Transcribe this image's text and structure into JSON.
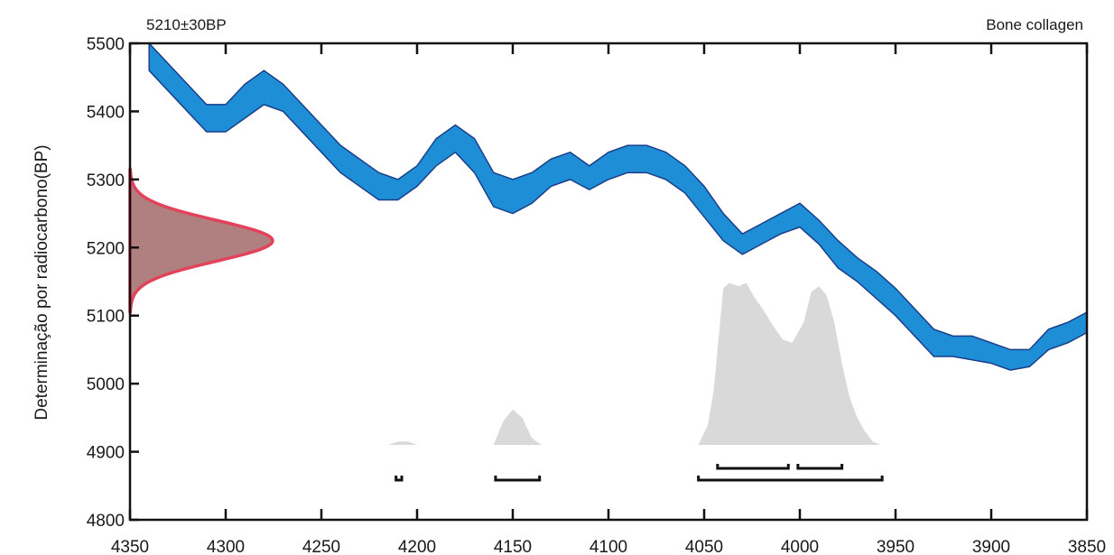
{
  "chart_data": {
    "type": "area",
    "annotation_left": "5210±30BP",
    "annotation_right": "Bone collagen",
    "ylabel": "Determinação por radiocarbono(BP)",
    "xlabel": "",
    "xlim": [
      4350,
      3850
    ],
    "ylim": [
      4800,
      5500
    ],
    "x_ticks": [
      4350,
      4300,
      4250,
      4200,
      4150,
      4100,
      4050,
      4000,
      3950,
      3900,
      3850
    ],
    "y_ticks": [
      4800,
      4900,
      5000,
      5100,
      5200,
      5300,
      5400,
      5500
    ],
    "colors": {
      "calibration_curve": "#1e8fd6",
      "calibration_outline": "#1a3f8a",
      "radiocarbon_fill": "#b08080",
      "radiocarbon_edge": "#e2435a",
      "calibrated_distribution": "#d9d9d9",
      "range_bars": "#111111"
    },
    "calibration_curve": {
      "x": [
        4340,
        4330,
        4320,
        4310,
        4300,
        4290,
        4280,
        4270,
        4260,
        4250,
        4240,
        4230,
        4220,
        4210,
        4200,
        4190,
        4180,
        4170,
        4160,
        4150,
        4140,
        4130,
        4120,
        4110,
        4100,
        4090,
        4080,
        4070,
        4060,
        4050,
        4040,
        4030,
        4020,
        4010,
        4000,
        3990,
        3980,
        3970,
        3960,
        3950,
        3940,
        3930,
        3920,
        3910,
        3900,
        3890,
        3880,
        3870,
        3860,
        3850
      ],
      "y_upper": [
        5500,
        5470,
        5440,
        5410,
        5410,
        5440,
        5460,
        5440,
        5410,
        5380,
        5350,
        5330,
        5310,
        5300,
        5320,
        5360,
        5380,
        5360,
        5310,
        5300,
        5310,
        5330,
        5340,
        5320,
        5340,
        5350,
        5350,
        5340,
        5320,
        5290,
        5250,
        5220,
        5235,
        5250,
        5265,
        5240,
        5210,
        5185,
        5165,
        5140,
        5110,
        5080,
        5070,
        5070,
        5060,
        5050,
        5050,
        5080,
        5090,
        5105
      ],
      "y_lower": [
        5460,
        5430,
        5400,
        5370,
        5370,
        5390,
        5410,
        5400,
        5370,
        5340,
        5310,
        5290,
        5270,
        5270,
        5290,
        5320,
        5340,
        5310,
        5260,
        5250,
        5265,
        5290,
        5300,
        5285,
        5300,
        5310,
        5310,
        5300,
        5280,
        5245,
        5210,
        5190,
        5205,
        5220,
        5230,
        5205,
        5170,
        5150,
        5125,
        5100,
        5070,
        5040,
        5040,
        5035,
        5030,
        5020,
        5025,
        5050,
        5060,
        5075
      ]
    },
    "radiocarbon_date": {
      "mean": 5210,
      "sigma": 30
    },
    "calibrated_distribution": {
      "baseline": 4910,
      "x": [
        4215,
        4210,
        4205,
        4200,
        4160,
        4155,
        4150,
        4145,
        4140,
        4135,
        4053,
        4048,
        4045,
        4042,
        4040,
        4037,
        4032,
        4028,
        4024,
        4019,
        4014,
        4009,
        4004,
        3998,
        3994,
        3990,
        3986,
        3982,
        3978,
        3974,
        3970,
        3966,
        3962,
        3958
      ],
      "y": [
        4910,
        4915,
        4915,
        4910,
        4910,
        4945,
        4962,
        4950,
        4920,
        4910,
        4910,
        4940,
        4990,
        5080,
        5140,
        5148,
        5143,
        5148,
        5128,
        5108,
        5085,
        5065,
        5060,
        5090,
        5135,
        5143,
        5130,
        5090,
        5030,
        4980,
        4950,
        4930,
        4915,
        4910
      ]
    },
    "range_bars": [
      {
        "from": 4211,
        "to": 4208,
        "level": 1
      },
      {
        "from": 4159,
        "to": 4136,
        "level": 1
      },
      {
        "from": 4053,
        "to": 3957,
        "level": 1
      },
      {
        "from": 4043,
        "to": 4006,
        "level": 2
      },
      {
        "from": 4001,
        "to": 3978,
        "level": 2
      }
    ]
  }
}
